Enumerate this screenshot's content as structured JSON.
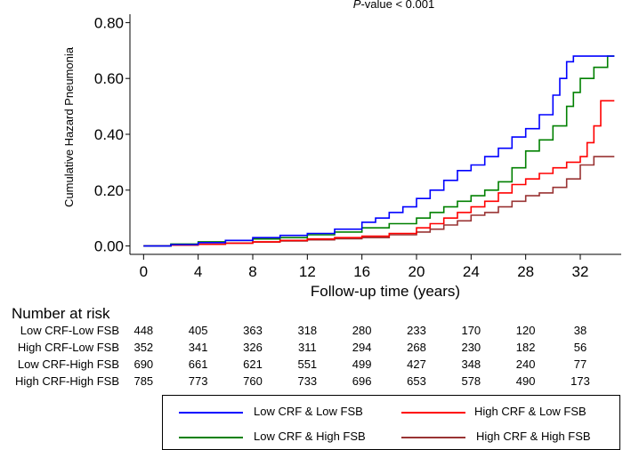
{
  "chart_data": {
    "type": "line",
    "subtitle_prefix": "P",
    "subtitle_suffix": "-value < 0.001",
    "xlabel": "Follow-up time (years)",
    "ylabel": "Cumulative Hazard Pneumonia",
    "xlim": [
      -1,
      35
    ],
    "ylim": [
      -0.03,
      0.83
    ],
    "x_ticks": [
      0,
      4,
      8,
      12,
      16,
      20,
      24,
      28,
      32
    ],
    "y_ticks": [
      0.0,
      0.2,
      0.4,
      0.6,
      0.8
    ],
    "y_tick_labels": [
      "0.00",
      "0.20",
      "0.40",
      "0.60",
      "0.80"
    ],
    "series": [
      {
        "name": "Low CRF & Low FSB",
        "color": "#0000ff",
        "points": [
          [
            0,
            0
          ],
          [
            2,
            0.005
          ],
          [
            4,
            0.012
          ],
          [
            6,
            0.02
          ],
          [
            8,
            0.03
          ],
          [
            10,
            0.038
          ],
          [
            12,
            0.045
          ],
          [
            14,
            0.06
          ],
          [
            16,
            0.085
          ],
          [
            17,
            0.1
          ],
          [
            18,
            0.12
          ],
          [
            19,
            0.14
          ],
          [
            20,
            0.17
          ],
          [
            21,
            0.2
          ],
          [
            22,
            0.235
          ],
          [
            23,
            0.27
          ],
          [
            24,
            0.29
          ],
          [
            25,
            0.32
          ],
          [
            26,
            0.35
          ],
          [
            27,
            0.39
          ],
          [
            28,
            0.42
          ],
          [
            29,
            0.47
          ],
          [
            30,
            0.54
          ],
          [
            30.5,
            0.6
          ],
          [
            31,
            0.66
          ],
          [
            31.5,
            0.68
          ],
          [
            33,
            0.68
          ],
          [
            34.5,
            0.68
          ]
        ]
      },
      {
        "name": "High CRF & Low FSB",
        "color": "#ff0000",
        "points": [
          [
            0,
            0
          ],
          [
            2,
            0.003
          ],
          [
            4,
            0.006
          ],
          [
            6,
            0.01
          ],
          [
            8,
            0.015
          ],
          [
            10,
            0.02
          ],
          [
            12,
            0.025
          ],
          [
            14,
            0.03
          ],
          [
            16,
            0.035
          ],
          [
            18,
            0.045
          ],
          [
            20,
            0.065
          ],
          [
            21,
            0.08
          ],
          [
            22,
            0.1
          ],
          [
            23,
            0.12
          ],
          [
            24,
            0.14
          ],
          [
            25,
            0.16
          ],
          [
            26,
            0.19
          ],
          [
            27,
            0.22
          ],
          [
            28,
            0.24
          ],
          [
            29,
            0.26
          ],
          [
            30,
            0.28
          ],
          [
            31,
            0.3
          ],
          [
            32,
            0.32
          ],
          [
            32.5,
            0.37
          ],
          [
            33,
            0.43
          ],
          [
            33.5,
            0.52
          ],
          [
            34.5,
            0.52
          ]
        ]
      },
      {
        "name": "Low CRF & High FSB",
        "color": "#008000",
        "points": [
          [
            0,
            0
          ],
          [
            2,
            0.007
          ],
          [
            4,
            0.015
          ],
          [
            6,
            0.02
          ],
          [
            8,
            0.025
          ],
          [
            10,
            0.03
          ],
          [
            12,
            0.04
          ],
          [
            14,
            0.05
          ],
          [
            16,
            0.065
          ],
          [
            18,
            0.08
          ],
          [
            20,
            0.1
          ],
          [
            21,
            0.12
          ],
          [
            22,
            0.14
          ],
          [
            23,
            0.16
          ],
          [
            24,
            0.18
          ],
          [
            25,
            0.2
          ],
          [
            26,
            0.23
          ],
          [
            27,
            0.28
          ],
          [
            28,
            0.34
          ],
          [
            29,
            0.38
          ],
          [
            30,
            0.43
          ],
          [
            31,
            0.5
          ],
          [
            31.5,
            0.55
          ],
          [
            32,
            0.6
          ],
          [
            33,
            0.64
          ],
          [
            34,
            0.68
          ],
          [
            34.5,
            0.68
          ]
        ]
      },
      {
        "name": "High CRF & High FSB",
        "color": "#993333",
        "points": [
          [
            0,
            0
          ],
          [
            2,
            0.003
          ],
          [
            4,
            0.006
          ],
          [
            6,
            0.01
          ],
          [
            8,
            0.014
          ],
          [
            10,
            0.018
          ],
          [
            12,
            0.022
          ],
          [
            14,
            0.026
          ],
          [
            16,
            0.03
          ],
          [
            18,
            0.04
          ],
          [
            20,
            0.05
          ],
          [
            21,
            0.06
          ],
          [
            22,
            0.075
          ],
          [
            23,
            0.09
          ],
          [
            24,
            0.11
          ],
          [
            25,
            0.12
          ],
          [
            26,
            0.14
          ],
          [
            27,
            0.16
          ],
          [
            28,
            0.18
          ],
          [
            29,
            0.19
          ],
          [
            30,
            0.21
          ],
          [
            31,
            0.24
          ],
          [
            32,
            0.29
          ],
          [
            33,
            0.32
          ],
          [
            34.5,
            0.32
          ]
        ]
      }
    ]
  },
  "risk_table": {
    "title": "Number at risk",
    "rows": [
      {
        "label": "Low CRF-Low FSB",
        "values": [
          448,
          405,
          363,
          318,
          280,
          233,
          170,
          120,
          38
        ]
      },
      {
        "label": "High CRF-Low FSB",
        "values": [
          352,
          341,
          326,
          311,
          294,
          268,
          230,
          182,
          56
        ]
      },
      {
        "label": "Low CRF-High FSB",
        "values": [
          690,
          661,
          621,
          551,
          499,
          427,
          348,
          240,
          77
        ]
      },
      {
        "label": "High CRF-High FSB",
        "values": [
          785,
          773,
          760,
          733,
          696,
          653,
          578,
          490,
          173
        ]
      }
    ]
  },
  "legend": {
    "items": [
      {
        "label": "Low CRF & Low FSB",
        "color": "#0000ff"
      },
      {
        "label": "High CRF & Low FSB",
        "color": "#ff0000"
      },
      {
        "label": "Low CRF & High FSB",
        "color": "#008000"
      },
      {
        "label": "High CRF & High FSB",
        "color": "#993333"
      }
    ]
  }
}
